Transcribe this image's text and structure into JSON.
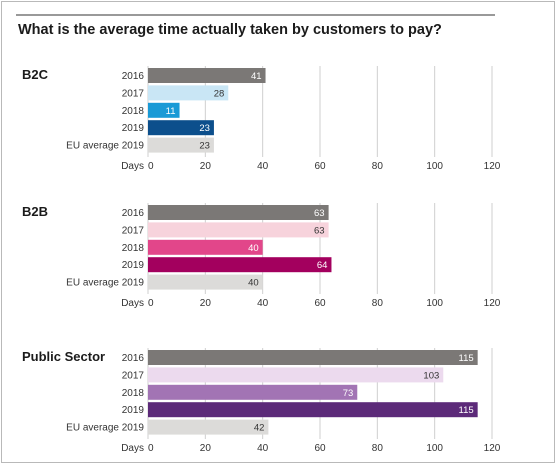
{
  "chart_data": {
    "type": "bar",
    "title": "What is the average time actually taken by customers to pay?",
    "axis_label": "Days",
    "xlim": [
      0,
      120
    ],
    "ticks": [
      0,
      20,
      40,
      60,
      80,
      100,
      120
    ],
    "grid": true,
    "panels": [
      {
        "name": "B2C",
        "categories": [
          "2016",
          "2017",
          "2018",
          "2019",
          "EU average 2019"
        ],
        "values": [
          41,
          28,
          11,
          23,
          23
        ],
        "colors": [
          "#7b7876",
          "#c9e6f5",
          "#1a9ad6",
          "#0c4f8c",
          "#dcdbd9"
        ],
        "label_colors": [
          "#ffffff",
          "#333333",
          "#ffffff",
          "#ffffff",
          "#333333"
        ]
      },
      {
        "name": "B2B",
        "categories": [
          "2016",
          "2017",
          "2018",
          "2019",
          "EU average 2019"
        ],
        "values": [
          63,
          63,
          40,
          64,
          40
        ],
        "colors": [
          "#7b7876",
          "#f7d3dc",
          "#e2468a",
          "#a3005e",
          "#dcdbd9"
        ],
        "label_colors": [
          "#ffffff",
          "#333333",
          "#ffffff",
          "#ffffff",
          "#333333"
        ]
      },
      {
        "name": "Public Sector",
        "categories": [
          "2016",
          "2017",
          "2018",
          "2019",
          "EU average 2019"
        ],
        "values": [
          115,
          103,
          73,
          115,
          42
        ],
        "colors": [
          "#7b7876",
          "#ecdaee",
          "#a274b4",
          "#5c2a79",
          "#dcdbd9"
        ],
        "label_colors": [
          "#ffffff",
          "#333333",
          "#ffffff",
          "#ffffff",
          "#333333"
        ]
      }
    ]
  }
}
